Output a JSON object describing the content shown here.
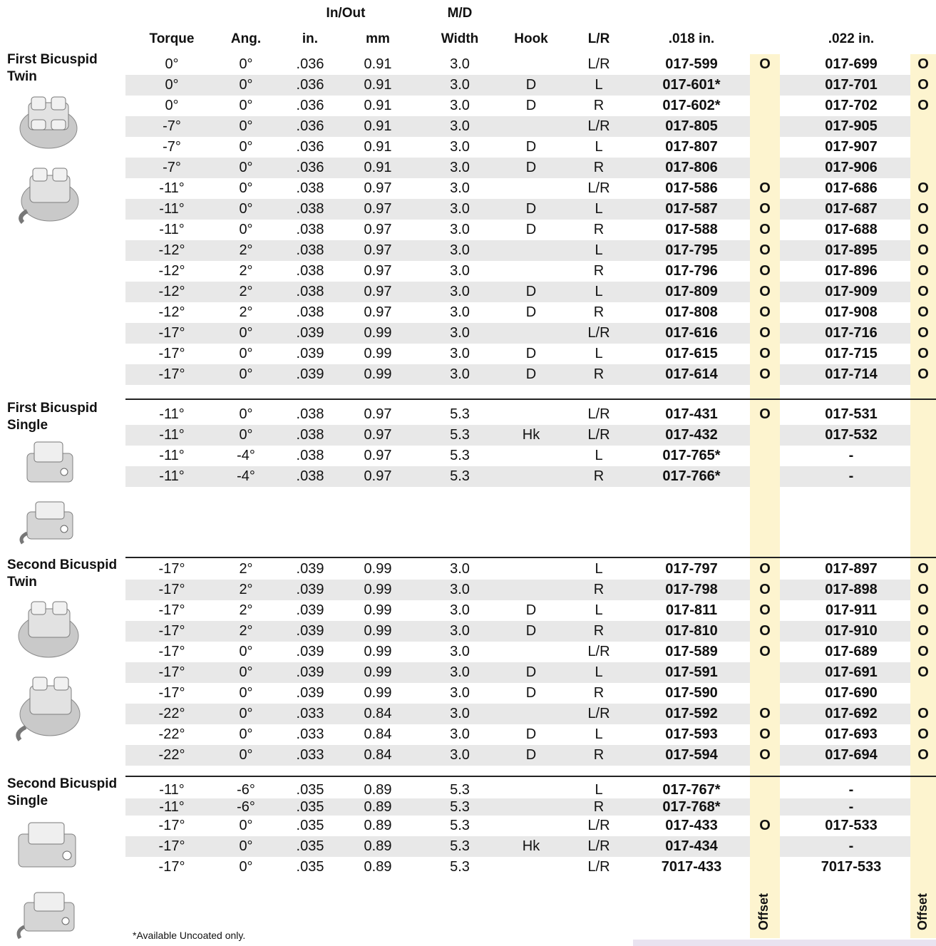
{
  "headers": {
    "torque": "Torque",
    "ang": "Ang.",
    "inout_group": "In/Out",
    "inout_in": "in.",
    "inout_mm": "mm",
    "md_group": "M/D",
    "md_width": "Width",
    "hook": "Hook",
    "lr": "L/R",
    "p018": ".018 in.",
    "p022": ".022 in."
  },
  "groups": [
    {
      "label_line1": "First Bicuspid",
      "label_line2": "Twin",
      "rows": [
        {
          "torque": "0°",
          "ang": "0°",
          "in": ".036",
          "mm": "0.91",
          "width": "3.0",
          "hook": "",
          "lr": "L/R",
          "p018": "017-599",
          "o018": "O",
          "p022": "017-699",
          "o022": "O"
        },
        {
          "torque": "0°",
          "ang": "0°",
          "in": ".036",
          "mm": "0.91",
          "width": "3.0",
          "hook": "D",
          "lr": "L",
          "p018": "017-601*",
          "o018": "",
          "p022": "017-701",
          "o022": "O"
        },
        {
          "torque": "0°",
          "ang": "0°",
          "in": ".036",
          "mm": "0.91",
          "width": "3.0",
          "hook": "D",
          "lr": "R",
          "p018": "017-602*",
          "o018": "",
          "p022": "017-702",
          "o022": "O"
        },
        {
          "torque": "-7°",
          "ang": "0°",
          "in": ".036",
          "mm": "0.91",
          "width": "3.0",
          "hook": "",
          "lr": "L/R",
          "p018": "017-805",
          "o018": "",
          "p022": "017-905",
          "o022": ""
        },
        {
          "torque": "-7°",
          "ang": "0°",
          "in": ".036",
          "mm": "0.91",
          "width": "3.0",
          "hook": "D",
          "lr": "L",
          "p018": "017-807",
          "o018": "",
          "p022": "017-907",
          "o022": ""
        },
        {
          "torque": "-7°",
          "ang": "0°",
          "in": ".036",
          "mm": "0.91",
          "width": "3.0",
          "hook": "D",
          "lr": "R",
          "p018": "017-806",
          "o018": "",
          "p022": "017-906",
          "o022": ""
        },
        {
          "torque": "-11°",
          "ang": "0°",
          "in": ".038",
          "mm": "0.97",
          "width": "3.0",
          "hook": "",
          "lr": "L/R",
          "p018": "017-586",
          "o018": "O",
          "p022": "017-686",
          "o022": "O"
        },
        {
          "torque": "-11°",
          "ang": "0°",
          "in": ".038",
          "mm": "0.97",
          "width": "3.0",
          "hook": "D",
          "lr": "L",
          "p018": "017-587",
          "o018": "O",
          "p022": "017-687",
          "o022": "O"
        },
        {
          "torque": "-11°",
          "ang": "0°",
          "in": ".038",
          "mm": "0.97",
          "width": "3.0",
          "hook": "D",
          "lr": "R",
          "p018": "017-588",
          "o018": "O",
          "p022": "017-688",
          "o022": "O"
        },
        {
          "torque": "-12°",
          "ang": "2°",
          "in": ".038",
          "mm": "0.97",
          "width": "3.0",
          "hook": "",
          "lr": "L",
          "p018": "017-795",
          "o018": "O",
          "p022": "017-895",
          "o022": "O"
        },
        {
          "torque": "-12°",
          "ang": "2°",
          "in": ".038",
          "mm": "0.97",
          "width": "3.0",
          "hook": "",
          "lr": "R",
          "p018": "017-796",
          "o018": "O",
          "p022": "017-896",
          "o022": "O"
        },
        {
          "torque": "-12°",
          "ang": "2°",
          "in": ".038",
          "mm": "0.97",
          "width": "3.0",
          "hook": "D",
          "lr": "L",
          "p018": "017-809",
          "o018": "O",
          "p022": "017-909",
          "o022": "O"
        },
        {
          "torque": "-12°",
          "ang": "2°",
          "in": ".038",
          "mm": "0.97",
          "width": "3.0",
          "hook": "D",
          "lr": "R",
          "p018": "017-808",
          "o018": "O",
          "p022": "017-908",
          "o022": "O"
        },
        {
          "torque": "-17°",
          "ang": "0°",
          "in": ".039",
          "mm": "0.99",
          "width": "3.0",
          "hook": "",
          "lr": "L/R",
          "p018": "017-616",
          "o018": "O",
          "p022": "017-716",
          "o022": "O"
        },
        {
          "torque": "-17°",
          "ang": "0°",
          "in": ".039",
          "mm": "0.99",
          "width": "3.0",
          "hook": "D",
          "lr": "L",
          "p018": "017-615",
          "o018": "O",
          "p022": "017-715",
          "o022": "O"
        },
        {
          "torque": "-17°",
          "ang": "0°",
          "in": ".039",
          "mm": "0.99",
          "width": "3.0",
          "hook": "D",
          "lr": "R",
          "p018": "017-614",
          "o018": "O",
          "p022": "017-714",
          "o022": "O"
        }
      ]
    },
    {
      "label_line1": "First Bicuspid",
      "label_line2": "Single",
      "rows": [
        {
          "torque": "-11°",
          "ang": "0°",
          "in": ".038",
          "mm": "0.97",
          "width": "5.3",
          "hook": "",
          "lr": "L/R",
          "p018": "017-431",
          "o018": "O",
          "p022": "017-531",
          "o022": ""
        },
        {
          "torque": "-11°",
          "ang": "0°",
          "in": ".038",
          "mm": "0.97",
          "width": "5.3",
          "hook": "Hk",
          "lr": "L/R",
          "p018": "017-432",
          "o018": "",
          "p022": "017-532",
          "o022": ""
        },
        {
          "torque": "-11°",
          "ang": "-4°",
          "in": ".038",
          "mm": "0.97",
          "width": "5.3",
          "hook": "",
          "lr": "L",
          "p018": "017-765*",
          "o018": "",
          "p022": "-",
          "o022": ""
        },
        {
          "torque": "-11°",
          "ang": "-4°",
          "in": ".038",
          "mm": "0.97",
          "width": "5.3",
          "hook": "",
          "lr": "R",
          "p018": "017-766*",
          "o018": "",
          "p022": "-",
          "o022": ""
        }
      ]
    },
    {
      "label_line1": "Second Bicuspid",
      "label_line2": "Twin",
      "rows": [
        {
          "torque": "-17°",
          "ang": "2°",
          "in": ".039",
          "mm": "0.99",
          "width": "3.0",
          "hook": "",
          "lr": "L",
          "p018": "017-797",
          "o018": "O",
          "p022": "017-897",
          "o022": "O"
        },
        {
          "torque": "-17°",
          "ang": "2°",
          "in": ".039",
          "mm": "0.99",
          "width": "3.0",
          "hook": "",
          "lr": "R",
          "p018": "017-798",
          "o018": "O",
          "p022": "017-898",
          "o022": "O"
        },
        {
          "torque": "-17°",
          "ang": "2°",
          "in": ".039",
          "mm": "0.99",
          "width": "3.0",
          "hook": "D",
          "lr": "L",
          "p018": "017-811",
          "o018": "O",
          "p022": "017-911",
          "o022": "O"
        },
        {
          "torque": "-17°",
          "ang": "2°",
          "in": ".039",
          "mm": "0.99",
          "width": "3.0",
          "hook": "D",
          "lr": "R",
          "p018": "017-810",
          "o018": "O",
          "p022": "017-910",
          "o022": "O"
        },
        {
          "torque": "-17°",
          "ang": "0°",
          "in": ".039",
          "mm": "0.99",
          "width": "3.0",
          "hook": "",
          "lr": "L/R",
          "p018": "017-589",
          "o018": "O",
          "p022": "017-689",
          "o022": "O"
        },
        {
          "torque": "-17°",
          "ang": "0°",
          "in": ".039",
          "mm": "0.99",
          "width": "3.0",
          "hook": "D",
          "lr": "L",
          "p018": "017-591",
          "o018": "",
          "p022": "017-691",
          "o022": "O"
        },
        {
          "torque": "-17°",
          "ang": "0°",
          "in": ".039",
          "mm": "0.99",
          "width": "3.0",
          "hook": "D",
          "lr": "R",
          "p018": "017-590",
          "o018": "",
          "p022": "017-690",
          "o022": ""
        },
        {
          "torque": "-22°",
          "ang": "0°",
          "in": ".033",
          "mm": "0.84",
          "width": "3.0",
          "hook": "",
          "lr": "L/R",
          "p018": "017-592",
          "o018": "O",
          "p022": "017-692",
          "o022": "O"
        },
        {
          "torque": "-22°",
          "ang": "0°",
          "in": ".033",
          "mm": "0.84",
          "width": "3.0",
          "hook": "D",
          "lr": "L",
          "p018": "017-593",
          "o018": "O",
          "p022": "017-693",
          "o022": "O"
        },
        {
          "torque": "-22°",
          "ang": "0°",
          "in": ".033",
          "mm": "0.84",
          "width": "3.0",
          "hook": "D",
          "lr": "R",
          "p018": "017-594",
          "o018": "O",
          "p022": "017-694",
          "o022": "O"
        }
      ]
    },
    {
      "label_line1": "Second Bicuspid",
      "label_line2": "Single",
      "rows": [
        {
          "torque": "-11°",
          "ang": "-6°",
          "in": ".035",
          "mm": "0.89",
          "width": "5.3",
          "hook": "",
          "lr": "L",
          "p018": "017-767*",
          "o018": "",
          "p022": "-",
          "o022": ""
        },
        {
          "torque": "-11°",
          "ang": "-6°",
          "in": ".035",
          "mm": "0.89",
          "width": "5.3",
          "hook": "",
          "lr": "R",
          "p018": "017-768*",
          "o018": "",
          "p022": "-",
          "o022": ""
        },
        {
          "torque": "-17°",
          "ang": "0°",
          "in": ".035",
          "mm": "0.89",
          "width": "5.3",
          "hook": "",
          "lr": "L/R",
          "p018": "017-433",
          "o018": "O",
          "p022": "017-533",
          "o022": ""
        },
        {
          "torque": "-17°",
          "ang": "0°",
          "in": ".035",
          "mm": "0.89",
          "width": "5.3",
          "hook": "Hk",
          "lr": "L/R",
          "p018": "017-434",
          "o018": "",
          "p022": "-",
          "o022": ""
        },
        {
          "torque": "-17°",
          "ang": "0°",
          "in": ".035",
          "mm": "0.89",
          "width": "5.3",
          "hook": "",
          "lr": "L/R",
          "p018": "7017-433",
          "o018": "",
          "p022": "7017-533",
          "o022": ""
        }
      ]
    }
  ],
  "offset_label": "Offset",
  "footnote": "*Available Uncoated only."
}
